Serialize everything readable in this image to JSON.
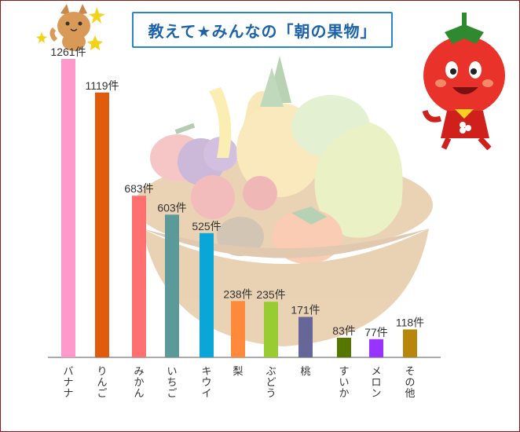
{
  "title": "教えて★みんなの「朝の果物」",
  "unit": "件",
  "chart_data": {
    "type": "bar",
    "title": "教えて★みんなの「朝の果物」",
    "xlabel": "",
    "ylabel": "",
    "categories": [
      "バナナ",
      "りんご",
      "みかん",
      "いちご",
      "キウイ",
      "梨",
      "ぶどう",
      "桃",
      "すいか",
      "メロン",
      "その他"
    ],
    "values": [
      1261,
      1119,
      683,
      603,
      525,
      238,
      235,
      171,
      83,
      77,
      118
    ],
    "colors": [
      "#ff99cc",
      "#e05c0c",
      "#ff7070",
      "#5c9a9a",
      "#0aa6d8",
      "#ff8a3c",
      "#99cc33",
      "#666699",
      "#557700",
      "#9933ff",
      "#b8860b"
    ],
    "grid": false,
    "legend": "none"
  }
}
